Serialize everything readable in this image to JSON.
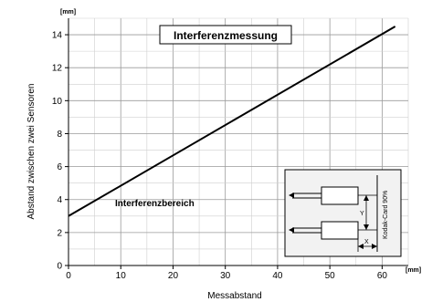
{
  "chart_data": {
    "type": "line",
    "title": "Interferenzmessung",
    "xlabel": "Messabstand",
    "ylabel": "Abstand zwischen zwei Sensoren",
    "x_unit": "[mm]",
    "y_unit": "[mm]",
    "xlim": [
      0,
      65
    ],
    "ylim": [
      0,
      15
    ],
    "x_ticks": [
      0,
      10,
      20,
      30,
      40,
      50,
      60
    ],
    "y_ticks": [
      0,
      2,
      4,
      6,
      8,
      10,
      12,
      14
    ],
    "grid": true,
    "series": [
      {
        "x": [
          0,
          62.5
        ],
        "y": [
          3,
          14.5
        ]
      }
    ],
    "annotations": [
      {
        "text": "Interferenzbereich"
      }
    ],
    "inset": {
      "labels": {
        "card": "Kodak-Card 90%",
        "y": "Y",
        "x": "X"
      }
    }
  }
}
